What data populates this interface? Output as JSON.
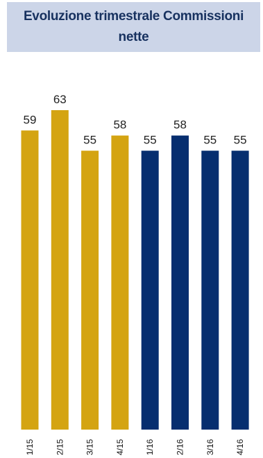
{
  "chart_data": {
    "type": "bar",
    "title": "Evoluzione trimestrale Commissioni nette",
    "categories": [
      "1/15",
      "2/15",
      "3/15",
      "4/15",
      "1/16",
      "2/16",
      "3/16",
      "4/16"
    ],
    "values": [
      59,
      63,
      55,
      58,
      55,
      58,
      55,
      55
    ],
    "bar_colors": [
      "#d4a412",
      "#d4a412",
      "#d4a412",
      "#d4a412",
      "#062e6f",
      "#062e6f",
      "#062e6f",
      "#062e6f"
    ],
    "xlabel": "",
    "ylabel": "",
    "ylim": [
      0,
      63
    ],
    "grid": false,
    "legend": "none"
  },
  "colors": {
    "title_background": "#ccd5e8",
    "title_text": "#17315f",
    "value_label": "#222222",
    "category_label": "#111111"
  }
}
